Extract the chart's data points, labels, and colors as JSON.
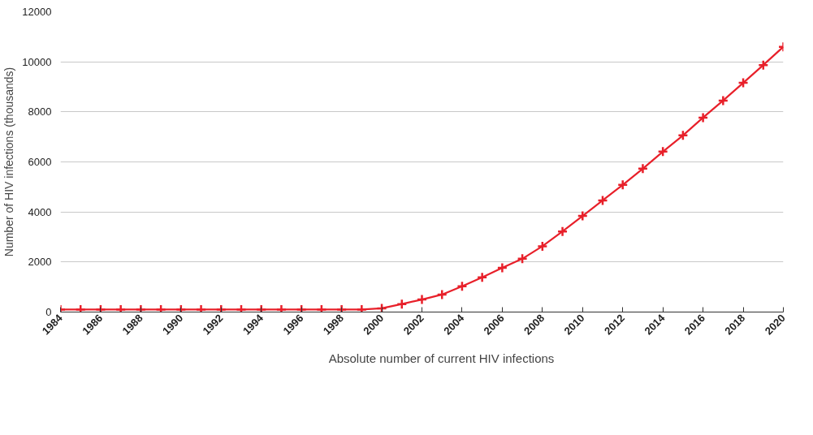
{
  "chart_data": {
    "type": "line",
    "ylabel": "Number of HIV infections (thousands)",
    "x": [
      1984,
      1985,
      1986,
      1987,
      1988,
      1989,
      1990,
      1991,
      1992,
      1993,
      1994,
      1995,
      1996,
      1997,
      1998,
      1999,
      2000,
      2001,
      2002,
      2003,
      2004,
      2005,
      2006,
      2007,
      2008,
      2009,
      2010,
      2011,
      2012,
      2013,
      2014,
      2015,
      2016,
      2017,
      2018,
      2019,
      2020
    ],
    "series": [
      {
        "name": "Absolute number of current HIV infections",
        "color": "#e8202a",
        "values": [
          100,
          100,
          100,
          100,
          100,
          100,
          100,
          100,
          100,
          100,
          100,
          100,
          100,
          100,
          100,
          100,
          150,
          320,
          500,
          700,
          1030,
          1390,
          1770,
          2130,
          2630,
          3220,
          3840,
          4460,
          5080,
          5730,
          6410,
          7060,
          7770,
          8450,
          9160,
          9870,
          10600
        ]
      }
    ],
    "xlim": [
      1984,
      2020
    ],
    "xticks": [
      1984,
      1986,
      1988,
      1990,
      1992,
      1994,
      1996,
      1998,
      2000,
      2002,
      2004,
      2006,
      2008,
      2010,
      2012,
      2014,
      2016,
      2018,
      2020
    ],
    "ylim": [
      0,
      12000
    ],
    "yticks": [
      0,
      2000,
      4000,
      6000,
      8000,
      10000,
      12000
    ],
    "grid": "y",
    "legend": "bottom",
    "marker": "cross",
    "line_style": "solid"
  }
}
